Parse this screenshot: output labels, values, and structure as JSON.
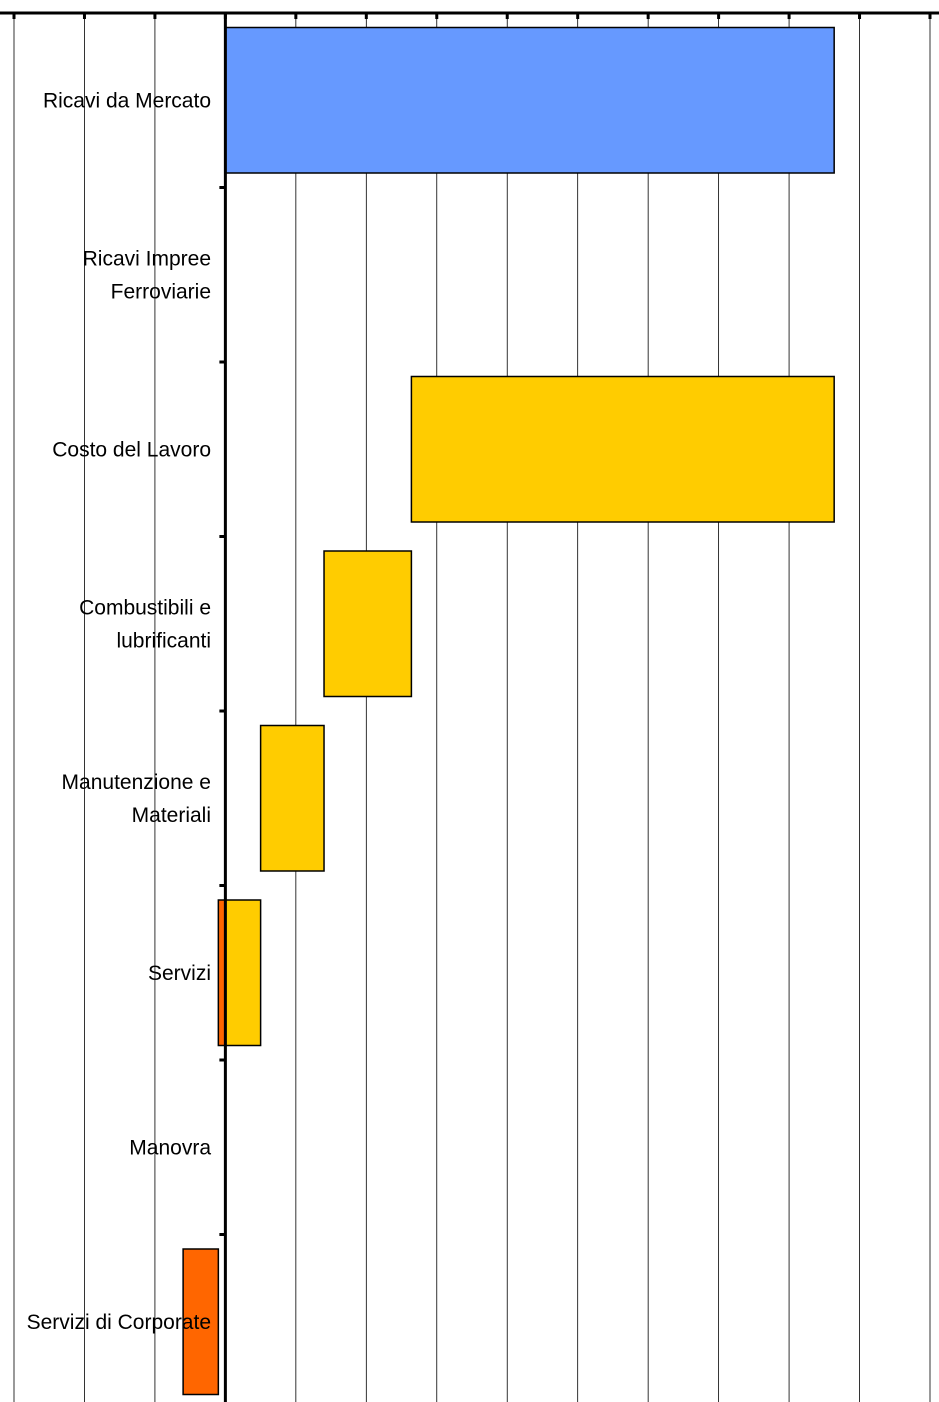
{
  "chart_data": {
    "type": "bar",
    "subtype": "waterfall-horizontal",
    "orientation": "horizontal",
    "title": "",
    "xlabel": "",
    "ylabel": "",
    "xlim": [
      -3,
      10
    ],
    "x_tick_step": 1,
    "grid": true,
    "legend": "none",
    "categories": [
      [
        "Ricavi da Mercato"
      ],
      [
        "Ricavi Impree",
        "Ferroviarie"
      ],
      [
        "Costo del Lavoro"
      ],
      [
        "Combustibili e",
        "lubrificanti"
      ],
      [
        "Manutenzione e",
        "Materiali"
      ],
      [
        "Servizi"
      ],
      [
        "Manovra"
      ],
      [
        "Servizi di Corporate"
      ]
    ],
    "bars": [
      {
        "category_index": 0,
        "start": 0,
        "end": 8.64,
        "color": "#6699FF"
      },
      {
        "category_index": 2,
        "start": 2.64,
        "end": 8.64,
        "color": "#FFCC00"
      },
      {
        "category_index": 3,
        "start": 1.4,
        "end": 2.64,
        "color": "#FFCC00"
      },
      {
        "category_index": 4,
        "start": 0.5,
        "end": 1.4,
        "color": "#FFCC00"
      },
      {
        "category_index": 5,
        "start": -0.1,
        "end": 0,
        "color": "#FF6600"
      },
      {
        "category_index": 5,
        "start": 0,
        "end": 0.5,
        "color": "#FFCC00"
      },
      {
        "category_index": 7,
        "start": -0.6,
        "end": -0.1,
        "color": "#FF6600"
      }
    ]
  }
}
